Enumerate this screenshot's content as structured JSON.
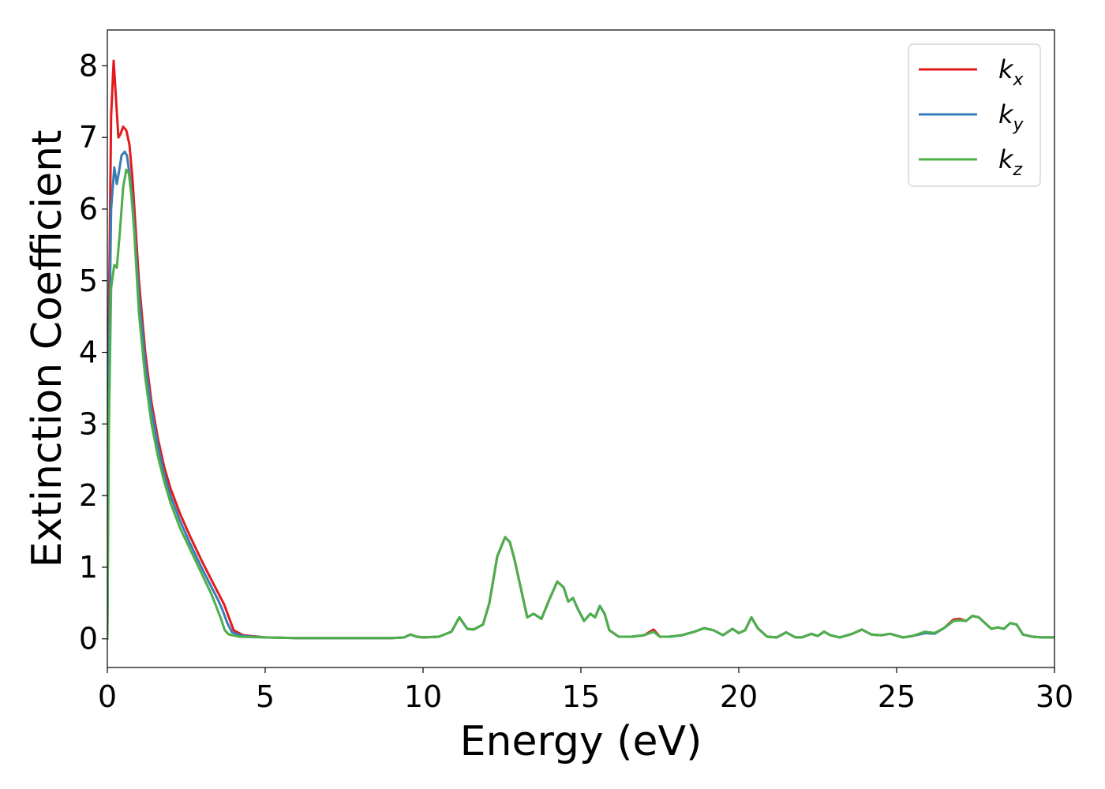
{
  "chart_data": {
    "type": "line",
    "xlabel": "Energy (eV)",
    "ylabel": "Extinction Coefficient",
    "xlim": [
      0,
      30
    ],
    "ylim": [
      -0.4,
      8.5
    ],
    "xticks": [
      0,
      5,
      10,
      15,
      20,
      25,
      30
    ],
    "yticks": [
      0,
      1,
      2,
      3,
      4,
      5,
      6,
      7,
      8
    ],
    "grid": false,
    "legend_position": "top-right",
    "series": [
      {
        "name": "kx",
        "name_base": "k",
        "name_sub": "x",
        "color": "#e41a1c",
        "x": [
          0,
          0.05,
          0.12,
          0.2,
          0.28,
          0.35,
          0.42,
          0.5,
          0.6,
          0.7,
          0.8,
          1.0,
          1.2,
          1.4,
          1.6,
          1.8,
          2.0,
          2.3,
          2.6,
          3.0,
          3.3,
          3.5,
          3.7,
          3.85,
          4.0,
          4.3,
          5.0,
          6,
          7,
          8,
          9,
          9.4,
          9.6,
          9.8,
          10,
          10.5,
          10.9,
          11.15,
          11.4,
          11.6,
          11.9,
          12.1,
          12.35,
          12.6,
          12.75,
          12.9,
          13.1,
          13.3,
          13.5,
          13.75,
          14.0,
          14.25,
          14.45,
          14.6,
          14.75,
          14.9,
          15.1,
          15.3,
          15.45,
          15.6,
          15.75,
          15.9,
          16.2,
          16.6,
          17.0,
          17.3,
          17.5,
          17.8,
          18.2,
          18.6,
          18.9,
          19.2,
          19.5,
          19.8,
          20.0,
          20.2,
          20.4,
          20.6,
          20.9,
          21.2,
          21.5,
          21.8,
          22.0,
          22.3,
          22.5,
          22.7,
          22.9,
          23.2,
          23.6,
          23.9,
          24.2,
          24.5,
          24.8,
          25.2,
          25.5,
          25.9,
          26.2,
          26.5,
          26.8,
          27.0,
          27.2,
          27.4,
          27.6,
          27.8,
          28.0,
          28.2,
          28.4,
          28.6,
          28.8,
          29.0,
          29.3,
          29.6,
          30.0
        ],
        "y": [
          0,
          4.5,
          7.3,
          8.07,
          7.5,
          7.0,
          7.05,
          7.15,
          7.1,
          6.9,
          6.4,
          5.0,
          4.0,
          3.3,
          2.8,
          2.4,
          2.1,
          1.75,
          1.45,
          1.08,
          0.82,
          0.65,
          0.48,
          0.3,
          0.12,
          0.05,
          0.02,
          0.01,
          0.01,
          0.01,
          0.01,
          0.02,
          0.06,
          0.03,
          0.02,
          0.03,
          0.1,
          0.3,
          0.14,
          0.13,
          0.2,
          0.5,
          1.15,
          1.42,
          1.35,
          1.1,
          0.7,
          0.3,
          0.35,
          0.28,
          0.55,
          0.8,
          0.72,
          0.52,
          0.57,
          0.42,
          0.25,
          0.35,
          0.3,
          0.46,
          0.35,
          0.12,
          0.03,
          0.03,
          0.05,
          0.13,
          0.03,
          0.03,
          0.05,
          0.1,
          0.15,
          0.12,
          0.05,
          0.14,
          0.08,
          0.12,
          0.3,
          0.15,
          0.03,
          0.02,
          0.09,
          0.02,
          0.02,
          0.07,
          0.04,
          0.1,
          0.05,
          0.02,
          0.07,
          0.13,
          0.06,
          0.05,
          0.07,
          0.02,
          0.04,
          0.08,
          0.08,
          0.15,
          0.27,
          0.28,
          0.25,
          0.32,
          0.3,
          0.22,
          0.14,
          0.16,
          0.14,
          0.22,
          0.2,
          0.06,
          0.03,
          0.02,
          0.02
        ]
      },
      {
        "name": "ky",
        "name_base": "k",
        "name_sub": "y",
        "color": "#377eb8",
        "x": [
          0,
          0.05,
          0.12,
          0.22,
          0.3,
          0.38,
          0.45,
          0.55,
          0.62,
          0.7,
          0.8,
          1.0,
          1.2,
          1.4,
          1.6,
          1.8,
          2.0,
          2.3,
          2.6,
          3.0,
          3.3,
          3.5,
          3.65,
          3.8,
          3.95,
          4.3,
          5.0,
          6,
          7,
          8,
          9,
          9.4,
          9.6,
          9.8,
          10,
          10.5,
          10.9,
          11.15,
          11.4,
          11.6,
          11.9,
          12.1,
          12.35,
          12.6,
          12.75,
          12.9,
          13.1,
          13.3,
          13.5,
          13.75,
          14.0,
          14.25,
          14.45,
          14.6,
          14.75,
          14.9,
          15.1,
          15.3,
          15.45,
          15.6,
          15.75,
          15.9,
          16.2,
          16.6,
          17.0,
          17.3,
          17.5,
          17.8,
          18.2,
          18.6,
          18.9,
          19.2,
          19.5,
          19.8,
          20.0,
          20.2,
          20.4,
          20.6,
          20.9,
          21.2,
          21.5,
          21.8,
          22.0,
          22.3,
          22.5,
          22.7,
          22.9,
          23.2,
          23.6,
          23.9,
          24.2,
          24.5,
          24.8,
          25.2,
          25.5,
          25.9,
          26.2,
          26.5,
          26.8,
          27.0,
          27.2,
          27.4,
          27.6,
          27.8,
          28.0,
          28.2,
          28.4,
          28.6,
          28.8,
          29.0,
          29.3,
          29.6,
          30.0
        ],
        "y": [
          0,
          3.8,
          6.0,
          6.58,
          6.35,
          6.55,
          6.75,
          6.8,
          6.75,
          6.5,
          6.1,
          4.8,
          3.85,
          3.2,
          2.7,
          2.3,
          2.0,
          1.65,
          1.35,
          0.98,
          0.72,
          0.55,
          0.4,
          0.22,
          0.09,
          0.04,
          0.02,
          0.01,
          0.01,
          0.01,
          0.01,
          0.02,
          0.06,
          0.03,
          0.02,
          0.03,
          0.1,
          0.3,
          0.14,
          0.13,
          0.2,
          0.5,
          1.15,
          1.42,
          1.35,
          1.1,
          0.7,
          0.3,
          0.35,
          0.28,
          0.55,
          0.8,
          0.72,
          0.52,
          0.57,
          0.42,
          0.25,
          0.35,
          0.3,
          0.46,
          0.35,
          0.12,
          0.03,
          0.03,
          0.05,
          0.1,
          0.03,
          0.03,
          0.05,
          0.1,
          0.15,
          0.12,
          0.05,
          0.14,
          0.08,
          0.12,
          0.3,
          0.15,
          0.03,
          0.02,
          0.09,
          0.02,
          0.02,
          0.07,
          0.04,
          0.1,
          0.05,
          0.02,
          0.07,
          0.13,
          0.06,
          0.05,
          0.07,
          0.02,
          0.04,
          0.08,
          0.07,
          0.15,
          0.25,
          0.26,
          0.25,
          0.32,
          0.3,
          0.22,
          0.14,
          0.16,
          0.14,
          0.22,
          0.2,
          0.06,
          0.03,
          0.02,
          0.02
        ]
      },
      {
        "name": "kz",
        "name_base": "k",
        "name_sub": "z",
        "color": "#4daf4a",
        "x": [
          0,
          0.05,
          0.12,
          0.22,
          0.3,
          0.4,
          0.5,
          0.6,
          0.68,
          0.76,
          0.85,
          1.0,
          1.2,
          1.4,
          1.6,
          1.8,
          2.0,
          2.3,
          2.6,
          3.0,
          3.3,
          3.45,
          3.6,
          3.72,
          3.85,
          4.2,
          5.0,
          6,
          7,
          8,
          9,
          9.4,
          9.6,
          9.8,
          10,
          10.5,
          10.9,
          11.15,
          11.4,
          11.6,
          11.9,
          12.1,
          12.35,
          12.6,
          12.75,
          12.9,
          13.1,
          13.3,
          13.5,
          13.75,
          14.0,
          14.25,
          14.45,
          14.6,
          14.75,
          14.9,
          15.1,
          15.3,
          15.45,
          15.6,
          15.75,
          15.9,
          16.2,
          16.6,
          17.0,
          17.3,
          17.5,
          17.8,
          18.2,
          18.6,
          18.9,
          19.2,
          19.5,
          19.8,
          20.0,
          20.2,
          20.4,
          20.6,
          20.9,
          21.2,
          21.5,
          21.8,
          22.0,
          22.3,
          22.5,
          22.7,
          22.9,
          23.2,
          23.6,
          23.9,
          24.2,
          24.5,
          24.8,
          25.2,
          25.5,
          25.9,
          26.2,
          26.5,
          26.8,
          27.0,
          27.2,
          27.4,
          27.6,
          27.8,
          28.0,
          28.2,
          28.4,
          28.6,
          28.8,
          29.0,
          29.3,
          29.6,
          30.0
        ],
        "y": [
          0,
          3.0,
          4.9,
          5.22,
          5.18,
          5.7,
          6.3,
          6.55,
          6.5,
          6.2,
          5.7,
          4.55,
          3.65,
          3.0,
          2.55,
          2.2,
          1.9,
          1.55,
          1.27,
          0.9,
          0.62,
          0.45,
          0.28,
          0.12,
          0.06,
          0.03,
          0.02,
          0.01,
          0.01,
          0.01,
          0.01,
          0.02,
          0.06,
          0.03,
          0.02,
          0.03,
          0.1,
          0.3,
          0.14,
          0.13,
          0.2,
          0.5,
          1.15,
          1.42,
          1.35,
          1.1,
          0.7,
          0.3,
          0.35,
          0.28,
          0.55,
          0.8,
          0.72,
          0.52,
          0.57,
          0.42,
          0.25,
          0.35,
          0.3,
          0.46,
          0.35,
          0.12,
          0.03,
          0.03,
          0.05,
          0.1,
          0.03,
          0.03,
          0.05,
          0.1,
          0.15,
          0.12,
          0.05,
          0.14,
          0.08,
          0.12,
          0.3,
          0.15,
          0.03,
          0.02,
          0.09,
          0.02,
          0.02,
          0.07,
          0.04,
          0.1,
          0.05,
          0.02,
          0.07,
          0.13,
          0.06,
          0.05,
          0.07,
          0.02,
          0.04,
          0.1,
          0.08,
          0.15,
          0.25,
          0.26,
          0.25,
          0.32,
          0.3,
          0.22,
          0.14,
          0.16,
          0.14,
          0.22,
          0.2,
          0.06,
          0.03,
          0.02,
          0.02
        ]
      }
    ]
  }
}
